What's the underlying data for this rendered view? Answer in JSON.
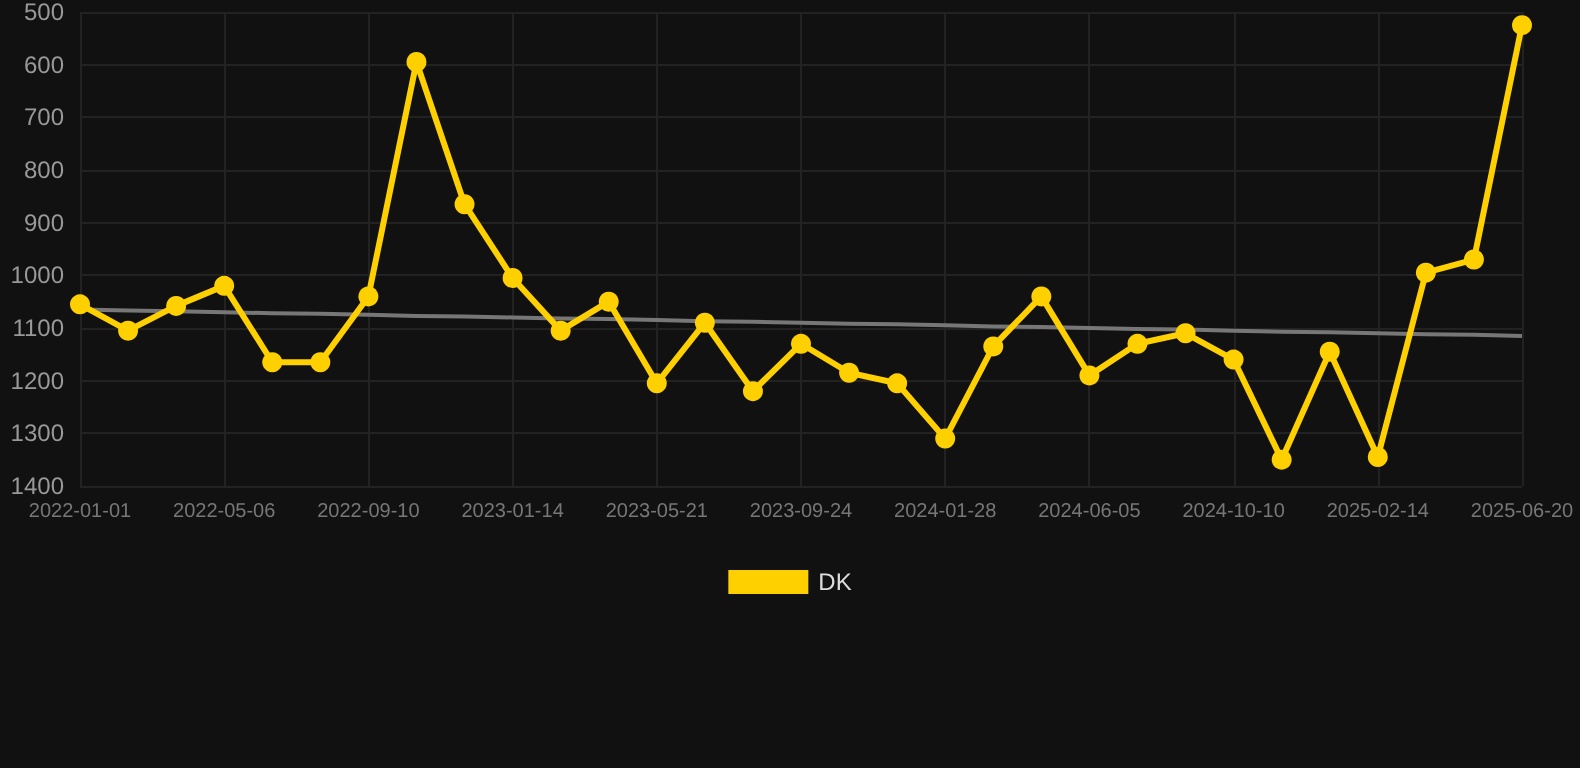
{
  "chart_data": {
    "type": "line",
    "categories": [
      "2022-01-01",
      null,
      null,
      "2022-05-06",
      null,
      null,
      "2022-09-10",
      null,
      null,
      "2023-01-14",
      null,
      null,
      "2023-05-21",
      null,
      null,
      "2023-09-24",
      null,
      null,
      "2024-01-28",
      null,
      null,
      "2024-06-05",
      null,
      null,
      "2024-10-10",
      null,
      null,
      "2025-02-14",
      null,
      null,
      "2025-06-20"
    ],
    "series": [
      {
        "name": "DK",
        "color": "#ffd000",
        "marker": "circle",
        "values": [
          1055,
          1105,
          1058,
          1020,
          1165,
          1165,
          1040,
          595,
          865,
          1005,
          1105,
          1050,
          1205,
          1090,
          1220,
          1130,
          1185,
          1205,
          1310,
          1135,
          1040,
          1190,
          1130,
          1110,
          1160,
          1350,
          1145,
          1345,
          995,
          970,
          525
        ]
      },
      {
        "type": "line",
        "color": "#777777",
        "marker": "none",
        "values": [
          1065,
          1067,
          1068,
          1070,
          1072,
          1073,
          1075,
          1077,
          1078,
          1080,
          1082,
          1083,
          1085,
          1087,
          1088,
          1090,
          1092,
          1093,
          1095,
          1097,
          1098,
          1100,
          1102,
          1103,
          1105,
          1107,
          1108,
          1110,
          1112,
          1113,
          1115
        ]
      }
    ],
    "ylim": [
      1400,
      500
    ],
    "yticks": [
      500,
      600,
      700,
      800,
      900,
      1000,
      1100,
      1200,
      1300,
      1400
    ],
    "grid": true,
    "legend": "bottom",
    "line_style": "solid"
  }
}
